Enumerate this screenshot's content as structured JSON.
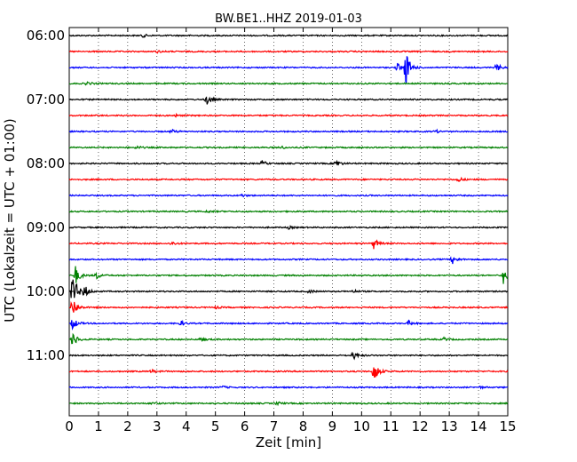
{
  "chart_data": {
    "type": "line",
    "title": "BW.BE1..HHZ 2019-01-03",
    "xlabel": "Zeit  [min]",
    "ylabel": "UTC (Lokalzeit = UTC + 01:00)",
    "xlim": [
      0,
      15
    ],
    "x_ticks": [
      "0",
      "1",
      "2",
      "3",
      "4",
      "5",
      "6",
      "7",
      "8",
      "9",
      "10",
      "11",
      "12",
      "13",
      "14",
      "15"
    ],
    "y_ticks": [
      "06:00",
      "07:00",
      "08:00",
      "09:00",
      "10:00",
      "11:00"
    ],
    "grid": {
      "vertical_dotted": true
    },
    "colors_cycle": [
      "#000000",
      "#ff0000",
      "#0000ff",
      "#008000"
    ],
    "traces_per_hour": 4,
    "trace_minutes": 15,
    "traces": [
      {
        "start": "06:00",
        "color": "#000000",
        "events": [
          {
            "x": 2.5,
            "amp": 2
          }
        ]
      },
      {
        "start": "06:15",
        "color": "#ff0000",
        "events": [
          {
            "x": 3.0,
            "amp": 1.5
          }
        ]
      },
      {
        "start": "06:30",
        "color": "#0000ff",
        "events": [
          {
            "x": 11.2,
            "amp": 6
          },
          {
            "x": 11.5,
            "amp": 22
          },
          {
            "x": 14.6,
            "amp": 5
          }
        ]
      },
      {
        "start": "06:45",
        "color": "#008000",
        "events": [
          {
            "x": 0.6,
            "amp": 2
          }
        ]
      },
      {
        "start": "07:00",
        "color": "#000000",
        "events": [
          {
            "x": 4.7,
            "amp": 6
          }
        ]
      },
      {
        "start": "07:15",
        "color": "#ff0000",
        "events": [
          {
            "x": 3.6,
            "amp": 1.5
          }
        ]
      },
      {
        "start": "07:30",
        "color": "#0000ff",
        "events": [
          {
            "x": 3.5,
            "amp": 2
          },
          {
            "x": 12.5,
            "amp": 2
          }
        ]
      },
      {
        "start": "07:45",
        "color": "#008000",
        "events": [
          {
            "x": 2.3,
            "amp": 2
          },
          {
            "x": 7.2,
            "amp": 2
          }
        ]
      },
      {
        "start": "08:00",
        "color": "#000000",
        "events": [
          {
            "x": 6.6,
            "amp": 3
          },
          {
            "x": 9.1,
            "amp": 5
          }
        ]
      },
      {
        "start": "08:15",
        "color": "#ff0000",
        "events": [
          {
            "x": 13.3,
            "amp": 3
          }
        ]
      },
      {
        "start": "08:30",
        "color": "#0000ff",
        "events": [
          {
            "x": 5.9,
            "amp": 1.5
          }
        ]
      },
      {
        "start": "08:45",
        "color": "#008000",
        "events": [
          {
            "x": 4.7,
            "amp": 1.5
          }
        ]
      },
      {
        "start": "09:00",
        "color": "#000000",
        "events": [
          {
            "x": 7.5,
            "amp": 1.5
          }
        ]
      },
      {
        "start": "09:15",
        "color": "#ff0000",
        "events": [
          {
            "x": 3.5,
            "amp": 2
          },
          {
            "x": 10.4,
            "amp": 7
          }
        ]
      },
      {
        "start": "09:30",
        "color": "#0000ff",
        "events": [
          {
            "x": 13.1,
            "amp": 5
          }
        ]
      },
      {
        "start": "09:45",
        "color": "#008000",
        "events": [
          {
            "x": 0.2,
            "amp": 12
          },
          {
            "x": 0.9,
            "amp": 5
          },
          {
            "x": 14.85,
            "amp": 10
          }
        ]
      },
      {
        "start": "10:00",
        "color": "#000000",
        "events": [
          {
            "x": 0.1,
            "amp": 28
          },
          {
            "x": 0.5,
            "amp": 8
          },
          {
            "x": 8.2,
            "amp": 2
          },
          {
            "x": 9.7,
            "amp": 2
          }
        ]
      },
      {
        "start": "10:15",
        "color": "#ff0000",
        "events": [
          {
            "x": 0.1,
            "amp": 14
          },
          {
            "x": 5.0,
            "amp": 1.5
          }
        ]
      },
      {
        "start": "10:30",
        "color": "#0000ff",
        "events": [
          {
            "x": 0.1,
            "amp": 8
          },
          {
            "x": 3.8,
            "amp": 3
          },
          {
            "x": 11.6,
            "amp": 3
          }
        ]
      },
      {
        "start": "10:45",
        "color": "#008000",
        "events": [
          {
            "x": 0.1,
            "amp": 10
          },
          {
            "x": 4.5,
            "amp": 2
          },
          {
            "x": 12.8,
            "amp": 2
          }
        ]
      },
      {
        "start": "11:00",
        "color": "#000000",
        "events": [
          {
            "x": 9.7,
            "amp": 5
          }
        ]
      },
      {
        "start": "11:15",
        "color": "#ff0000",
        "events": [
          {
            "x": 2.8,
            "amp": 2
          },
          {
            "x": 10.4,
            "amp": 16
          }
        ]
      },
      {
        "start": "11:30",
        "color": "#0000ff",
        "events": [
          {
            "x": 5.2,
            "amp": 2
          },
          {
            "x": 14.0,
            "amp": 1.5
          }
        ]
      },
      {
        "start": "11:45",
        "color": "#008000",
        "events": [
          {
            "x": 2.8,
            "amp": 1.5
          },
          {
            "x": 7.1,
            "amp": 2
          }
        ]
      }
    ]
  }
}
